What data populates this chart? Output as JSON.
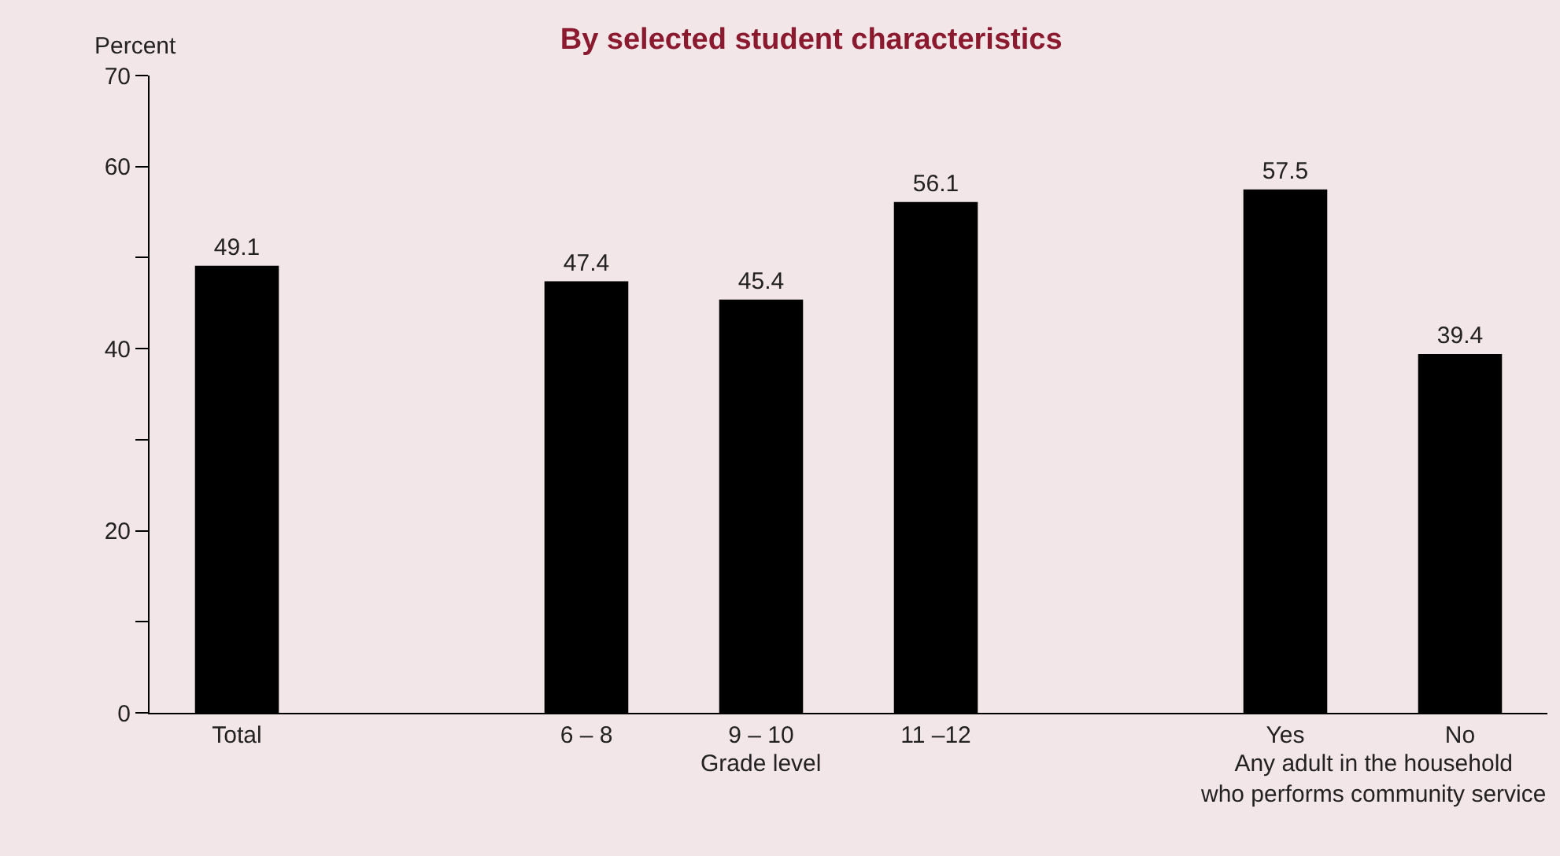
{
  "chart_data": {
    "type": "bar",
    "title": "By selected student characteristics",
    "ylabel": "Percent",
    "categories": [
      "Total",
      null,
      "6 – 8",
      "9 – 10",
      "11 –12",
      null,
      "Yes",
      "No"
    ],
    "values": [
      49.1,
      null,
      47.4,
      45.4,
      56.1,
      null,
      57.5,
      39.4
    ],
    "color": "#000000",
    "ylim": [
      0,
      70
    ],
    "yticks": [
      0,
      {
        "value": 10,
        "label": null
      },
      20,
      {
        "value": 30,
        "label": null
      },
      40,
      {
        "value": 50,
        "label": null
      },
      60,
      70
    ],
    "annotations": [
      "Grade level",
      "Any adult in the household who performs community service"
    ],
    "data_labels": true,
    "grid": false,
    "legend": false
  }
}
